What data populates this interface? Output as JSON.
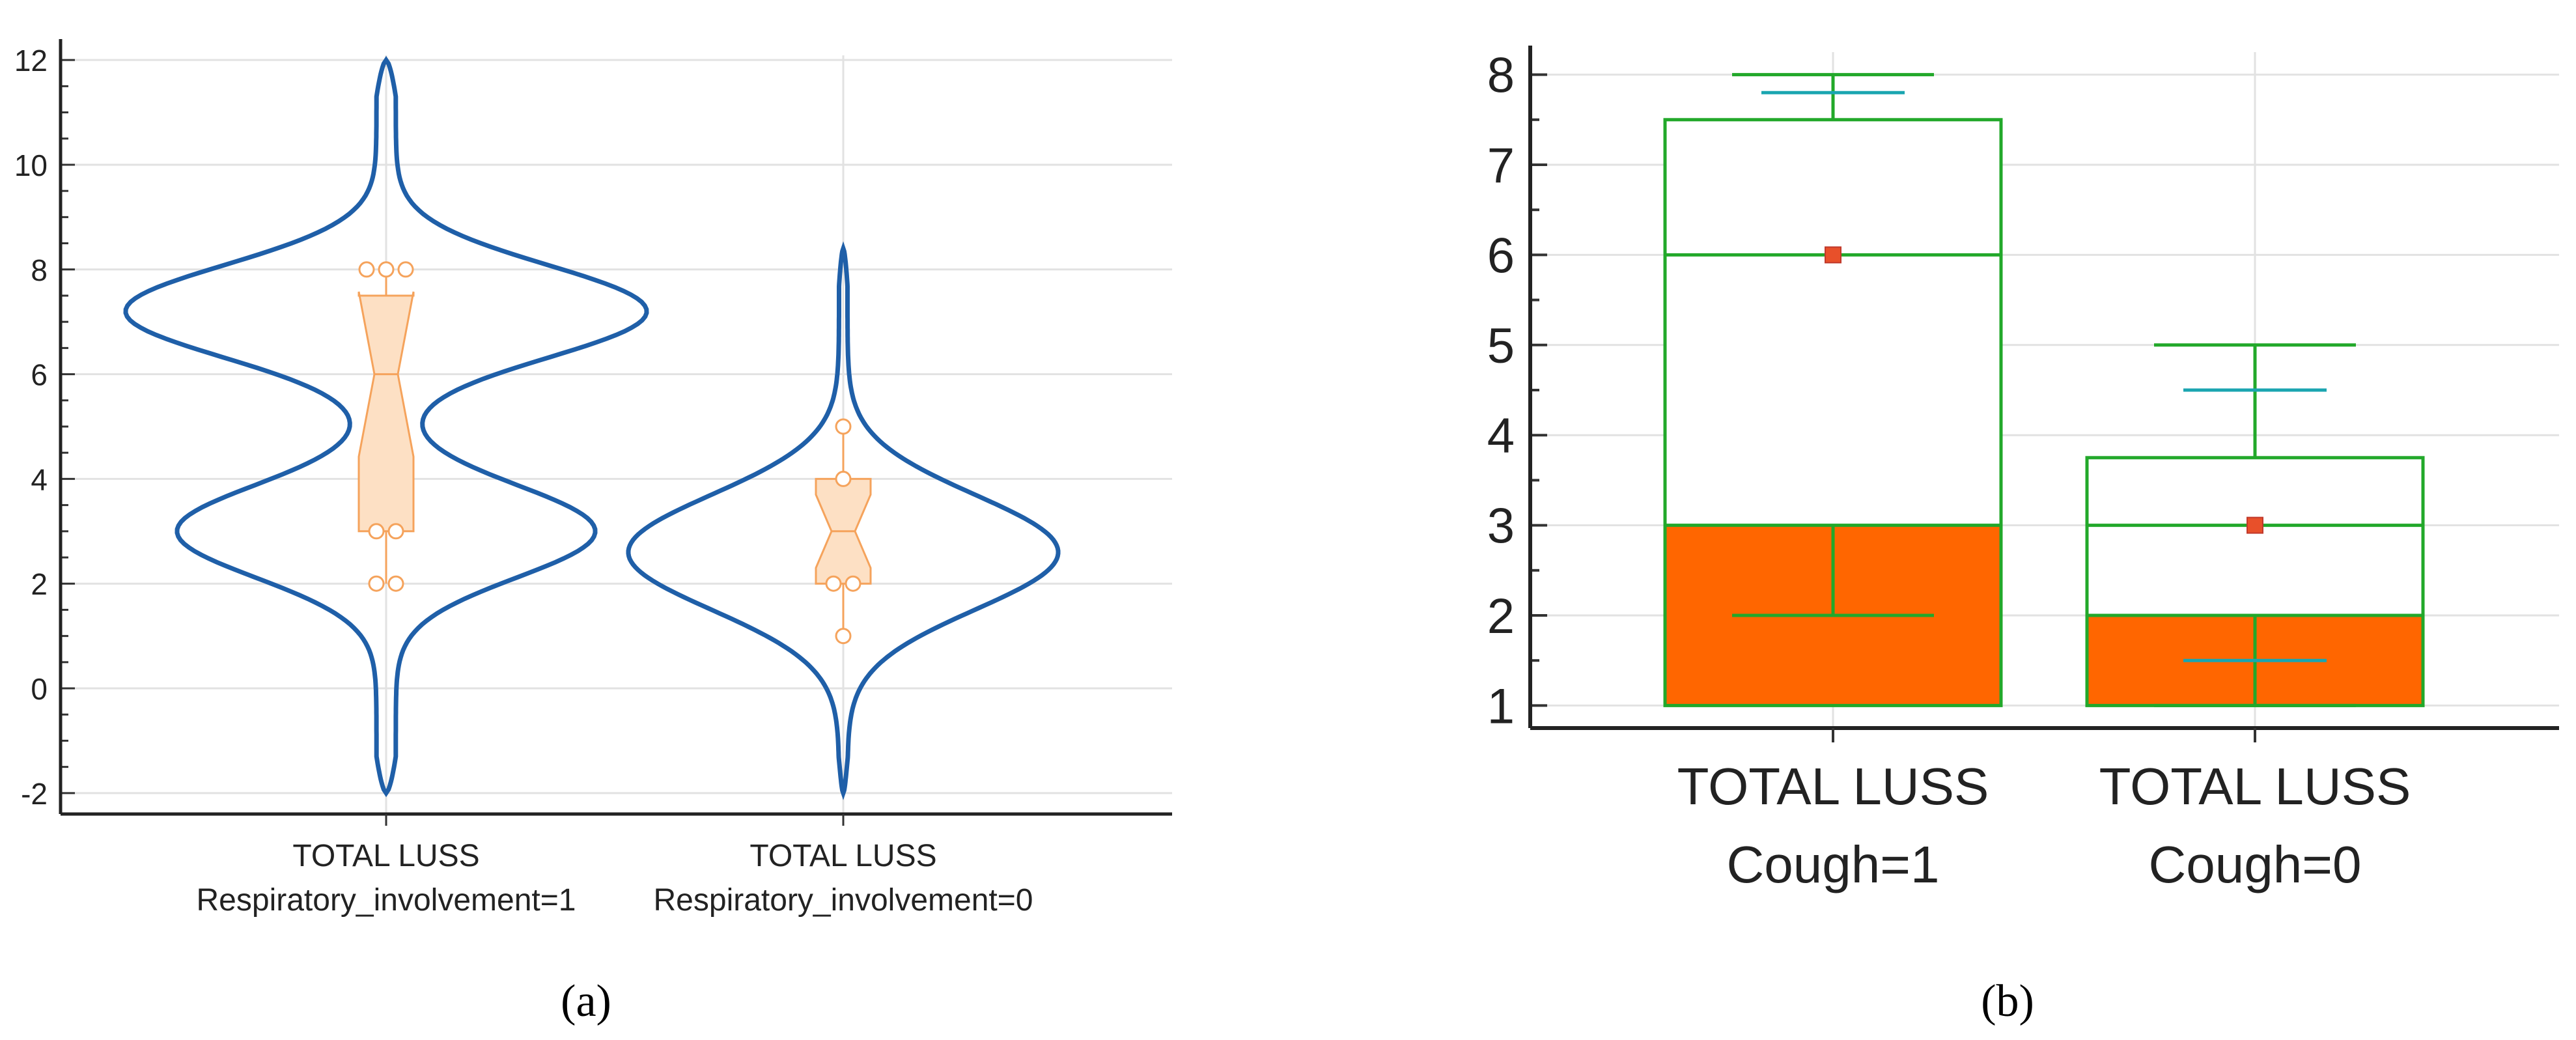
{
  "chart_data": [
    {
      "type": "violin",
      "panel_label": "(a)",
      "ylim": [
        -2.4,
        12.4
      ],
      "y_ticks": [
        "-2",
        "0",
        "2",
        "4",
        "6",
        "8",
        "10",
        "12"
      ],
      "y_tick_values": [
        -2,
        0,
        2,
        4,
        6,
        8,
        10,
        12
      ],
      "grid": true,
      "groups": [
        {
          "label_line1": "TOTAL LUSS",
          "label_line2": "Respiratory_involvement=1",
          "violin_range": [
            -2,
            12
          ],
          "box": {
            "q1": 3,
            "median": 6,
            "q3": 7.5,
            "whisker_low": 2,
            "whisker_high": 8
          },
          "points": [
            2,
            2,
            3,
            3,
            8,
            8,
            8
          ]
        },
        {
          "label_line1": "TOTAL LUSS",
          "label_line2": "Respiratory_involvement=0",
          "violin_range": [
            -2,
            8.4
          ],
          "box": {
            "q1": 2,
            "median": 3,
            "q3": 4,
            "whisker_low": 1,
            "whisker_high": 5
          },
          "points": [
            1,
            2,
            2,
            4,
            5
          ]
        }
      ],
      "colors": {
        "violin": "#1f5fa8",
        "box_fill": "#fde0c4",
        "box_stroke": "#f5a35c"
      }
    },
    {
      "type": "box",
      "panel_label": "(b)",
      "ylim": [
        0.75,
        8.25
      ],
      "y_ticks": [
        "1",
        "2",
        "3",
        "4",
        "5",
        "6",
        "7",
        "8"
      ],
      "y_tick_values": [
        1,
        2,
        3,
        4,
        5,
        6,
        7,
        8
      ],
      "grid": true,
      "groups": [
        {
          "label_line1": "TOTAL LUSS",
          "label_line2": "Cough=1",
          "bar_value": 6,
          "q1": 3,
          "q3": 7.5,
          "median": 6,
          "mean": 6,
          "whisker_low": 2,
          "whisker_high": 8,
          "upper_marker": 7.8
        },
        {
          "label_line1": "TOTAL LUSS",
          "label_line2": "Cough=0",
          "bar_value": 3,
          "q1": 2,
          "q3": 3.75,
          "median": 3,
          "mean": 3,
          "whisker_low": 1,
          "whisker_high": 5,
          "upper_marker": 4.5,
          "lower_marker": 1.5
        }
      ],
      "colors": {
        "bar": "#ff6600",
        "box": "#22a82a",
        "marker": "#1aa5b0",
        "mean": "#e8502a"
      }
    }
  ]
}
